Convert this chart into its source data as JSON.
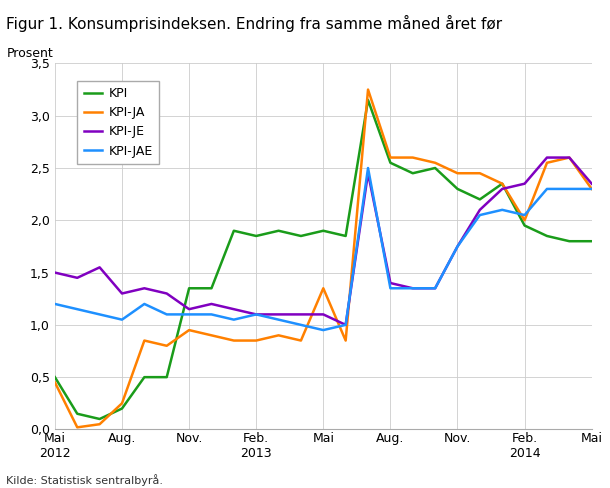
{
  "title": "Figur 1. Konsumprisindeksen. Endring fra samme måned året før",
  "ylabel": "Prosent",
  "source": "Kilde: Statistisk sentralbyrå.",
  "ylim": [
    0.0,
    3.5
  ],
  "yticks": [
    0.0,
    0.5,
    1.0,
    1.5,
    2.0,
    2.5,
    3.0,
    3.5
  ],
  "x_tick_labels": [
    "Mai\n2012",
    "Aug.",
    "Nov.",
    "Feb.\n2013",
    "Mai",
    "Aug.",
    "Nov.",
    "Feb.\n2014",
    "Mai"
  ],
  "x_tick_positions": [
    0,
    3,
    6,
    9,
    12,
    15,
    18,
    21,
    24
  ],
  "series": {
    "KPI": {
      "color": "#1a9c1a",
      "values": [
        0.5,
        0.15,
        0.1,
        0.2,
        0.5,
        0.5,
        1.35,
        1.35,
        1.9,
        1.85,
        1.9,
        1.85,
        1.9,
        1.85,
        3.15,
        2.55,
        2.45,
        2.5,
        2.3,
        2.2,
        2.35,
        1.95,
        1.85,
        1.8,
        1.8
      ]
    },
    "KPI-JA": {
      "color": "#ff8000",
      "values": [
        0.45,
        0.02,
        0.05,
        0.25,
        0.85,
        0.8,
        0.95,
        0.9,
        0.85,
        0.85,
        0.9,
        0.85,
        1.35,
        0.85,
        3.25,
        2.6,
        2.6,
        2.55,
        2.45,
        2.45,
        2.35,
        2.0,
        2.55,
        2.6,
        2.3
      ]
    },
    "KPI-JE": {
      "color": "#8000c0",
      "values": [
        1.5,
        1.45,
        1.55,
        1.3,
        1.35,
        1.3,
        1.15,
        1.2,
        1.15,
        1.1,
        1.1,
        1.1,
        1.1,
        1.0,
        2.45,
        1.4,
        1.35,
        1.35,
        1.75,
        2.1,
        2.3,
        2.35,
        2.6,
        2.6,
        2.35
      ]
    },
    "KPI-JAE": {
      "color": "#1e90ff",
      "values": [
        1.2,
        1.15,
        1.1,
        1.05,
        1.2,
        1.1,
        1.1,
        1.1,
        1.05,
        1.1,
        1.05,
        1.0,
        0.95,
        1.0,
        2.5,
        1.35,
        1.35,
        1.35,
        1.75,
        2.05,
        2.1,
        2.05,
        2.3,
        2.3,
        2.3
      ]
    }
  }
}
